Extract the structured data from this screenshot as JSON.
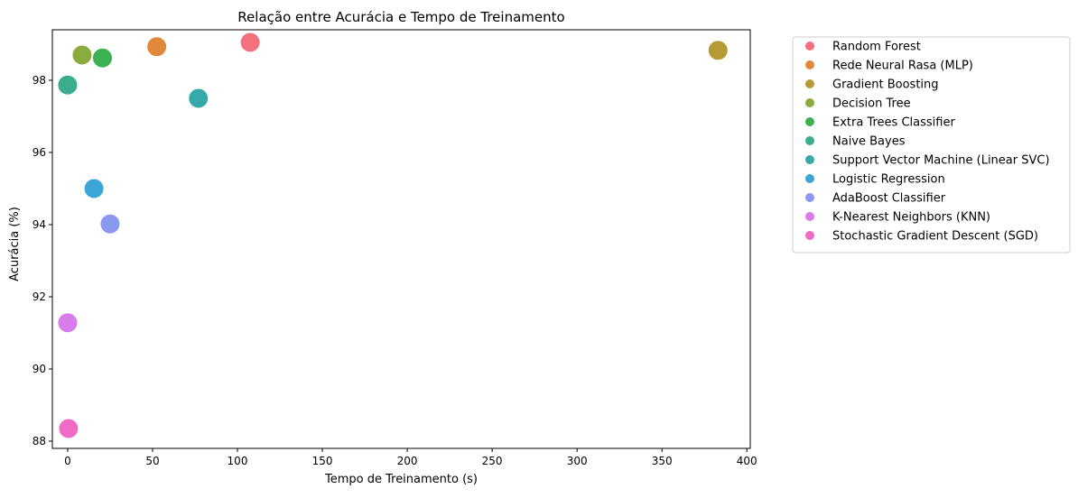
{
  "chart_data": {
    "type": "scatter",
    "title": "Relação entre Acurácia e Tempo de Treinamento",
    "xlabel": "Tempo de Treinamento (s)",
    "ylabel": "Acurácia (%)",
    "xlim": [
      -9,
      402
    ],
    "ylim": [
      87.8,
      99.4
    ],
    "xticks": [
      0,
      50,
      100,
      150,
      200,
      250,
      300,
      350,
      400
    ],
    "yticks": [
      88,
      90,
      92,
      94,
      96,
      98
    ],
    "grid": false,
    "legend_position": "outside-right",
    "series": [
      {
        "name": "Random Forest",
        "color": "#f3707f",
        "points": [
          {
            "x": 107.5,
            "y": 99.05
          }
        ]
      },
      {
        "name": "Rede Neural Rasa (MLP)",
        "color": "#e1893a",
        "points": [
          {
            "x": 52.5,
            "y": 98.93
          }
        ]
      },
      {
        "name": "Gradient Boosting",
        "color": "#b69a35",
        "points": [
          {
            "x": 383,
            "y": 98.83
          }
        ]
      },
      {
        "name": "Decision Tree",
        "color": "#8aab3d",
        "points": [
          {
            "x": 8.5,
            "y": 98.7
          }
        ]
      },
      {
        "name": "Extra Trees Classifier",
        "color": "#3cb151",
        "points": [
          {
            "x": 20.5,
            "y": 98.62
          }
        ]
      },
      {
        "name": "Naive Bayes",
        "color": "#3bad8f",
        "points": [
          {
            "x": 0,
            "y": 97.87
          }
        ]
      },
      {
        "name": "Support Vector Machine (Linear SVC)",
        "color": "#36a9ab",
        "points": [
          {
            "x": 77,
            "y": 97.5
          }
        ]
      },
      {
        "name": "Logistic Regression",
        "color": "#3aa6d6",
        "points": [
          {
            "x": 15.5,
            "y": 95
          }
        ]
      },
      {
        "name": "AdaBoost Classifier",
        "color": "#8b98f0",
        "points": [
          {
            "x": 25,
            "y": 94.02
          }
        ]
      },
      {
        "name": "K-Nearest Neighbors (KNN)",
        "color": "#d97ceb",
        "points": [
          {
            "x": 0,
            "y": 91.28
          }
        ]
      },
      {
        "name": "Stochastic Gradient Descent (SGD)",
        "color": "#f06bc6",
        "points": [
          {
            "x": 0.5,
            "y": 88.35
          }
        ]
      }
    ]
  }
}
